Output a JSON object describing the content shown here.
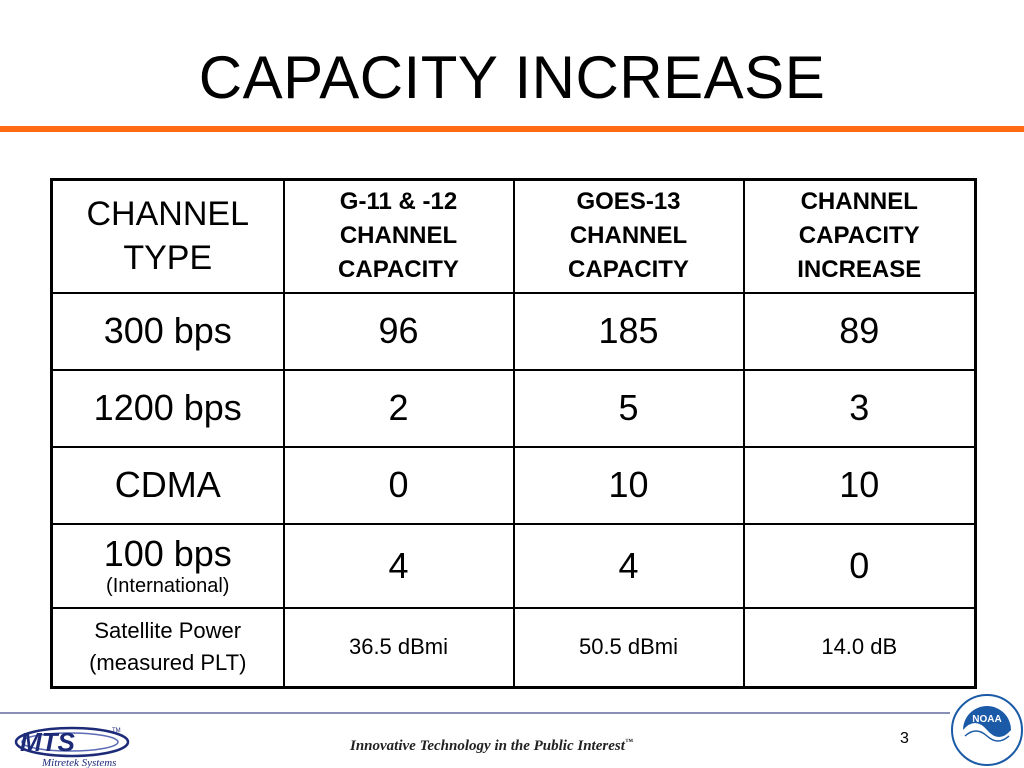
{
  "slide": {
    "title": "CAPACITY INCREASE",
    "page_number": "3"
  },
  "table": {
    "headers": [
      "CHANNEL TYPE",
      "G-11 & -12 CHANNEL CAPACITY",
      "GOES-13 CHANNEL CAPACITY",
      "CHANNEL CAPACITY INCREASE"
    ],
    "rows": [
      [
        "300 bps",
        "96",
        "185",
        "89"
      ],
      [
        "1200 bps",
        "2",
        "5",
        "3"
      ],
      [
        "CDMA",
        "0",
        "10",
        "10"
      ],
      [
        "100 bps",
        "4",
        "4",
        "0"
      ]
    ],
    "row4_note": "(International)",
    "power_row": [
      "Satellite Power (measured PLT)",
      "36.5 dBmi",
      "50.5 dBmi",
      "14.0 dB"
    ]
  },
  "footer": {
    "tagline": "Innovative Technology in the Public Interest",
    "tagline_mark": "™",
    "logo_left": {
      "text": "MTS",
      "mark": "TM",
      "sub": "Mitretek Systems"
    },
    "logo_right": {
      "text": "NOAA"
    }
  },
  "colors": {
    "title_rule": "#ff6a13",
    "footer_rule": "#8a8fb8",
    "mts_blue": "#1c2a78",
    "noaa_blue": "#1a5aa6"
  }
}
